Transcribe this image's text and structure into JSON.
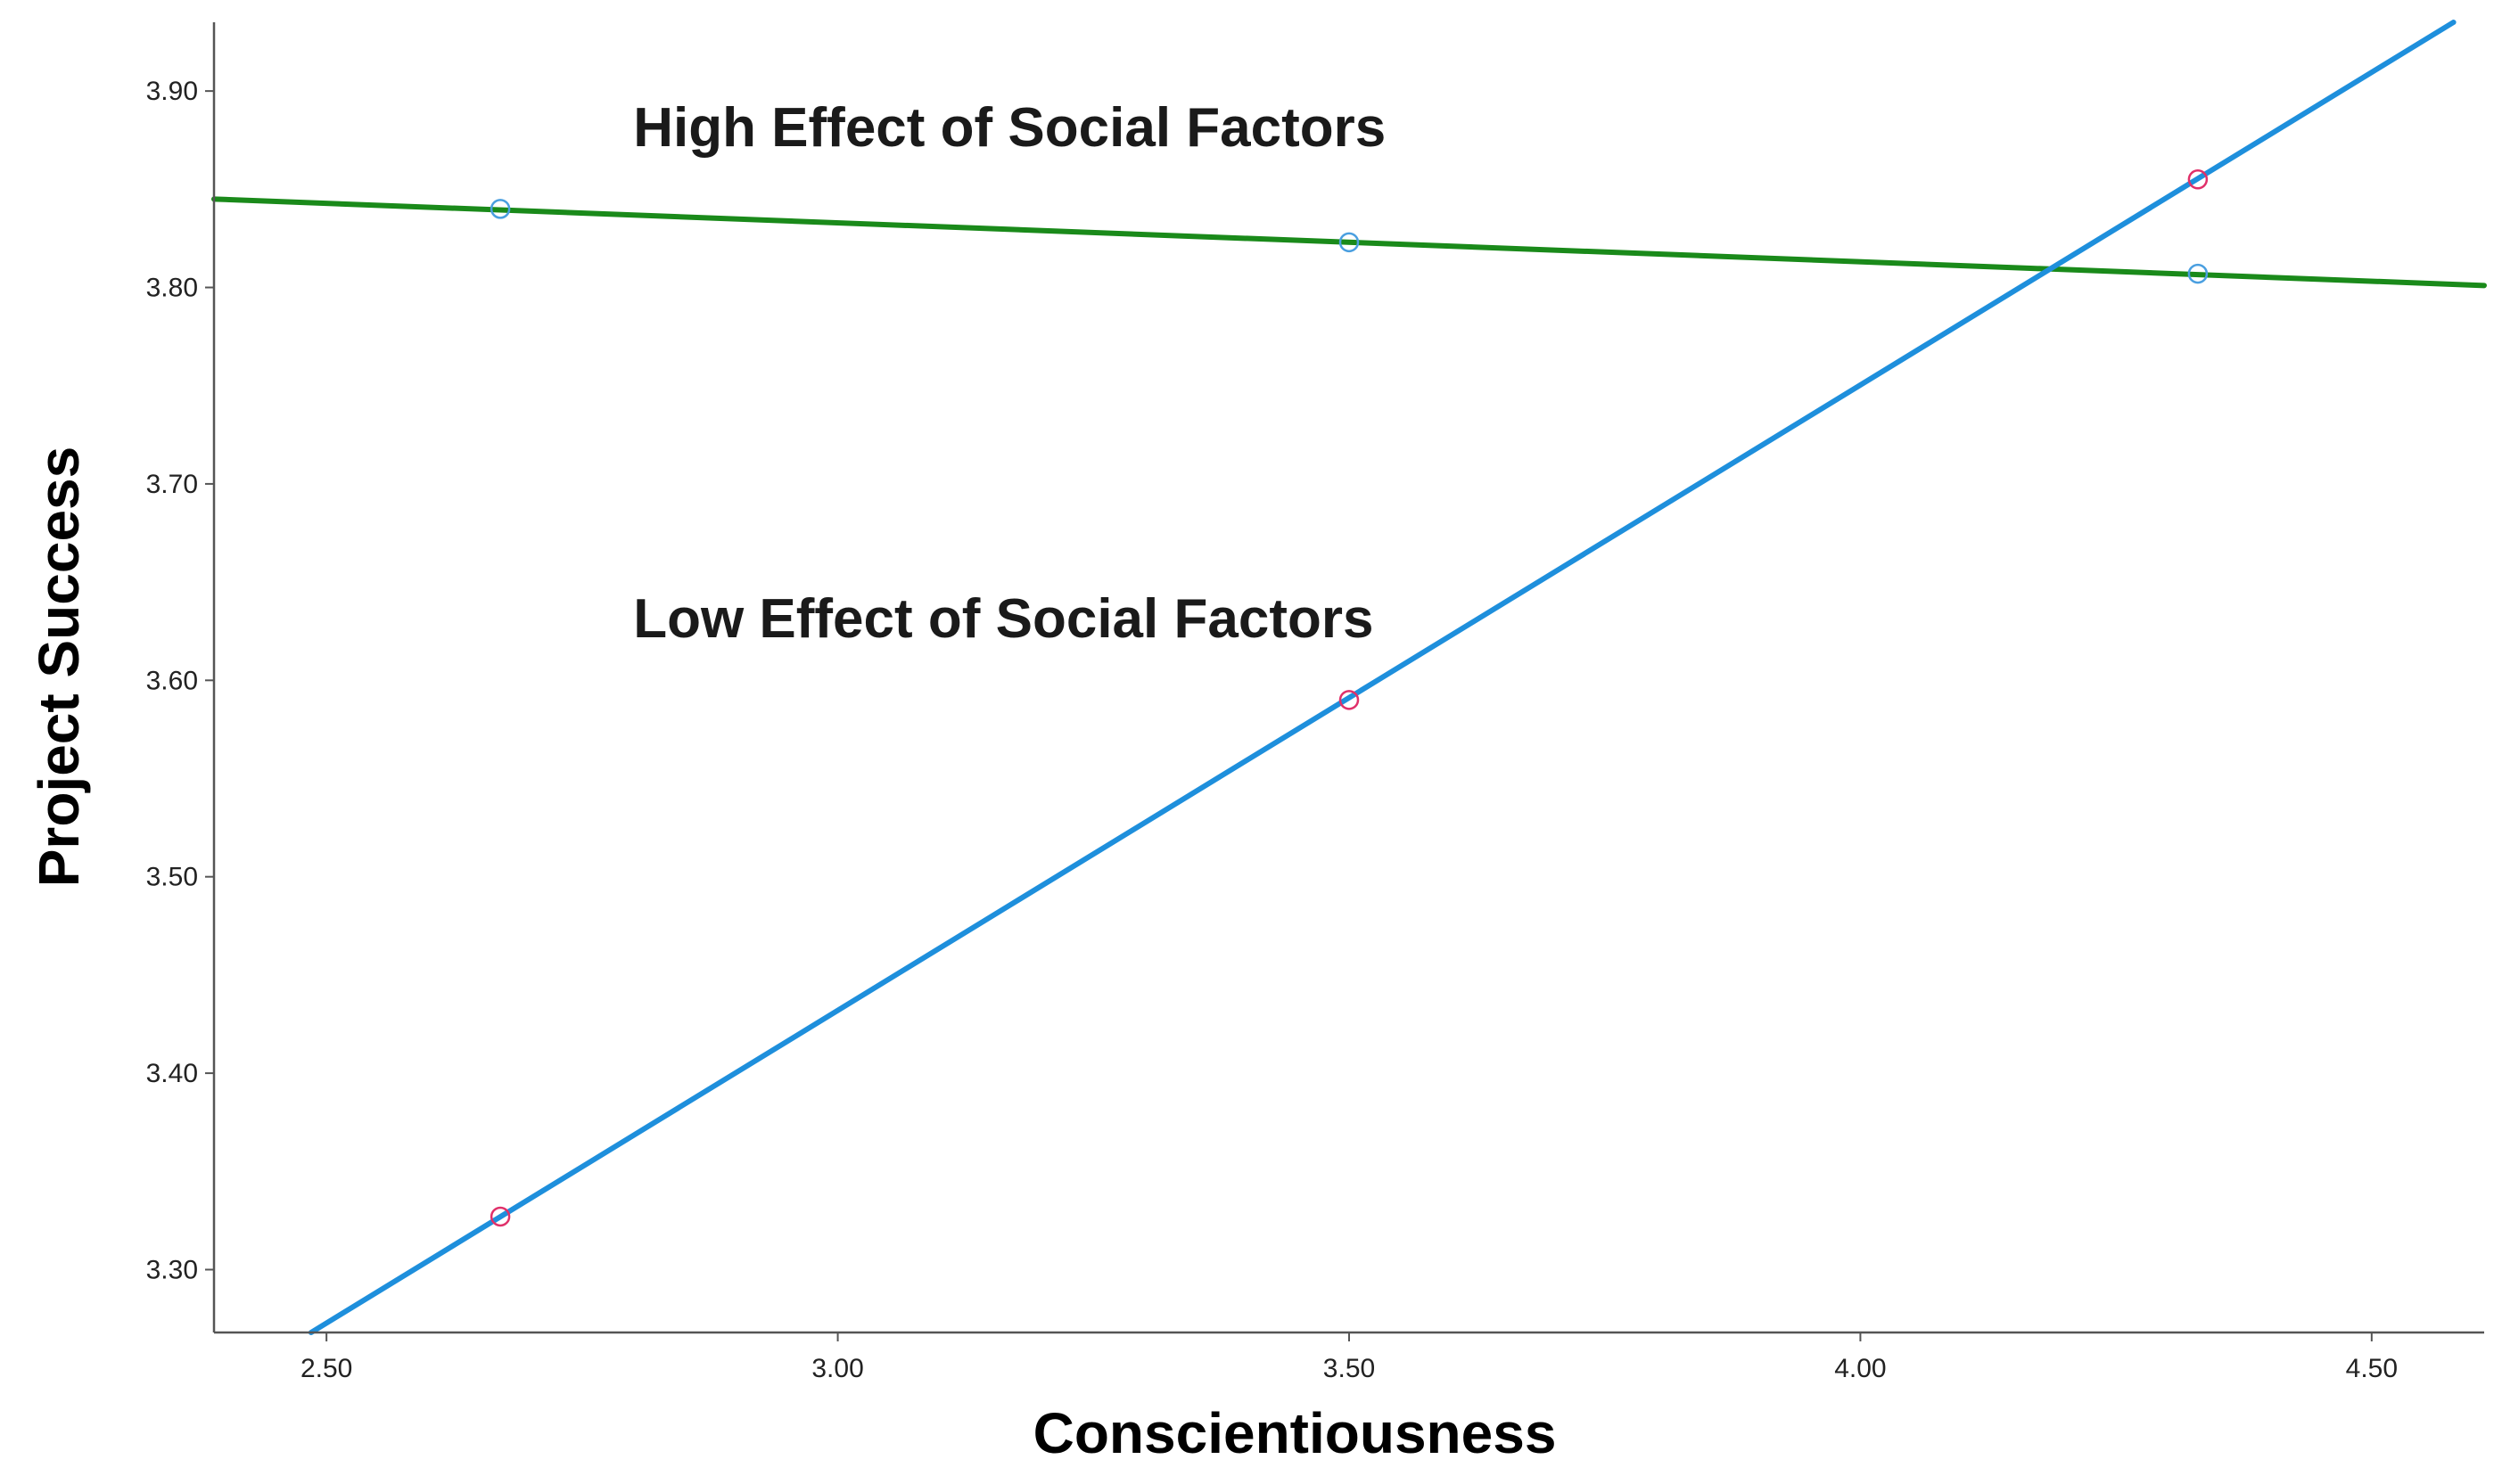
{
  "chart_data": {
    "type": "line",
    "title": "",
    "xlabel": "Conscientiousness",
    "ylabel": "Project Success",
    "xlim": [
      2.39,
      4.61
    ],
    "ylim": [
      3.268,
      3.935
    ],
    "x_ticks": [
      "2.50",
      "3.00",
      "3.50",
      "4.00",
      "4.50"
    ],
    "y_ticks": [
      "3.30",
      "3.40",
      "3.50",
      "3.60",
      "3.70",
      "3.80",
      "3.90"
    ],
    "grid": false,
    "legend": "none",
    "series": [
      {
        "name": "High Effect of Social Factors",
        "line_color": "#1a8a1a",
        "marker_color": "#4a9fe0",
        "points": [
          {
            "x": 2.67,
            "y": 3.84
          },
          {
            "x": 3.5,
            "y": 3.823
          },
          {
            "x": 4.33,
            "y": 3.807
          }
        ],
        "fit_line": {
          "x": [
            2.39,
            4.61
          ],
          "y": [
            3.845,
            3.801
          ]
        }
      },
      {
        "name": "Low Effect of Social Factors",
        "line_color": "#1e8fdc",
        "marker_color": "#e0306a",
        "points": [
          {
            "x": 2.67,
            "y": 3.327
          },
          {
            "x": 3.5,
            "y": 3.59
          },
          {
            "x": 4.33,
            "y": 3.855
          }
        ],
        "fit_line": {
          "x": [
            2.485,
            4.58
          ],
          "y": [
            3.268,
            3.935
          ]
        }
      }
    ],
    "annotations": [
      {
        "text": "High Effect of Social Factors",
        "x": 2.8,
        "y": 3.872
      },
      {
        "text": "Low Effect of Social Factors",
        "x": 2.8,
        "y": 3.622
      }
    ]
  }
}
